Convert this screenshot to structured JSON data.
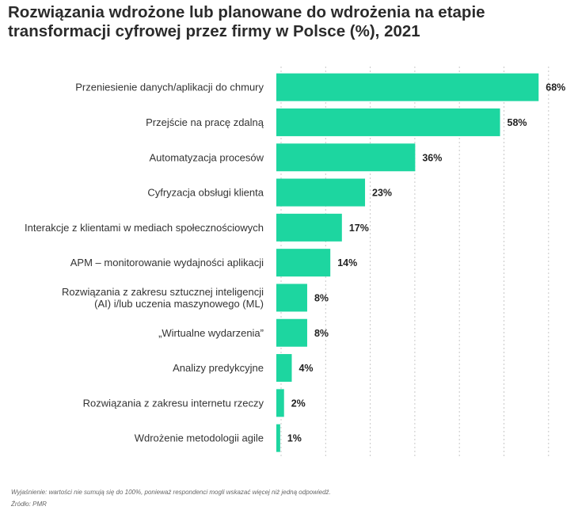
{
  "chart_data": {
    "type": "bar",
    "orientation": "horizontal",
    "title_lines": [
      "Rozwiązania wdrożone lub planowane do wdrożenia na etapie",
      "transformacji cyfrowej przez firmy w Polsce (%), 2021"
    ],
    "categories": [
      [
        "Przeniesienie danych/aplikacji do chmury"
      ],
      [
        "Przejście na pracę zdalną"
      ],
      [
        "Automatyzacja procesów"
      ],
      [
        "Cyfryzacja obsługi klienta"
      ],
      [
        "Interakcje z klientami w mediach społecznościowych"
      ],
      [
        "APM – monitorowanie wydajności aplikacji"
      ],
      [
        "Rozwiązania z zakresu sztucznej inteligencji",
        "(AI) i/lub uczenia maszynowego (ML)"
      ],
      [
        "„Wirtualne wydarzenia”"
      ],
      [
        "Analizy predykcyjne"
      ],
      [
        "Rozwiązania z zakresu internetu rzeczy"
      ],
      [
        "Wdrożenie metodologii agile"
      ]
    ],
    "values": [
      68,
      58,
      36,
      23,
      17,
      14,
      8,
      8,
      4,
      2,
      1
    ],
    "value_labels": [
      "68%",
      "58%",
      "36%",
      "23%",
      "17%",
      "14%",
      "8%",
      "8%",
      "4%",
      "2%",
      "1%"
    ],
    "xlim": [
      0,
      70
    ],
    "grid": true,
    "bar_color": "#1dd6a0",
    "grid_color": "#c8c8c8"
  },
  "footer": {
    "note": "Wyjaśnienie: wartości nie sumują się do 100%, ponieważ respondenci mogli wskazać więcej niż jedną odpowiedź.",
    "source": "Źródło: PMR"
  }
}
